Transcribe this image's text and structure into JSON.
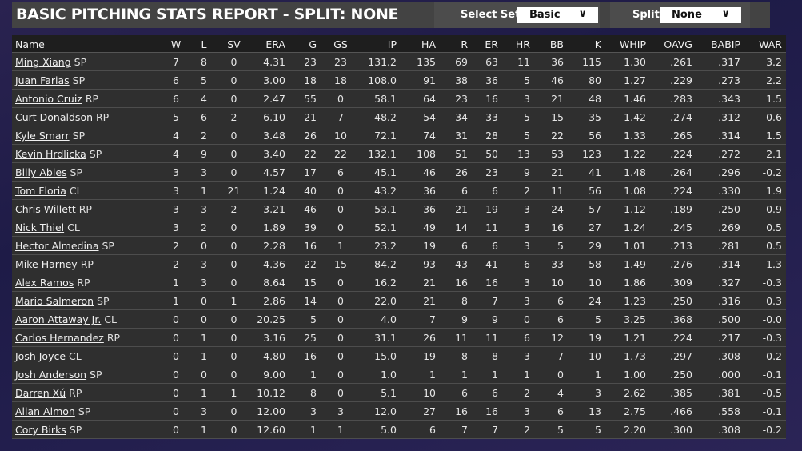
{
  "header": {
    "title": "BASIC PITCHING STATS REPORT - SPLIT: NONE",
    "select_set_label": "Select Set:",
    "select_set_value": "Basic",
    "split_label": "Split:",
    "split_value": "None"
  },
  "columns": [
    "Name",
    "W",
    "L",
    "SV",
    "ERA",
    "G",
    "GS",
    "IP",
    "HA",
    "R",
    "ER",
    "HR",
    "BB",
    "K",
    "WHIP",
    "OAVG",
    "BABIP",
    "WAR"
  ],
  "rows": [
    {
      "name": "Ming Xiang",
      "pos": "SP",
      "stats": [
        "7",
        "8",
        "0",
        "4.31",
        "23",
        "23",
        "131.2",
        "135",
        "69",
        "63",
        "11",
        "36",
        "115",
        "1.30",
        ".261",
        ".317",
        "3.2"
      ]
    },
    {
      "name": "Juan Farias",
      "pos": "SP",
      "stats": [
        "6",
        "5",
        "0",
        "3.00",
        "18",
        "18",
        "108.0",
        "91",
        "38",
        "36",
        "5",
        "46",
        "80",
        "1.27",
        ".229",
        ".273",
        "2.2"
      ]
    },
    {
      "name": "Antonio Cruiz",
      "pos": "RP",
      "stats": [
        "6",
        "4",
        "0",
        "2.47",
        "55",
        "0",
        "58.1",
        "64",
        "23",
        "16",
        "3",
        "21",
        "48",
        "1.46",
        ".283",
        ".343",
        "1.5"
      ]
    },
    {
      "name": "Curt Donaldson",
      "pos": "RP",
      "stats": [
        "5",
        "6",
        "2",
        "6.10",
        "21",
        "7",
        "48.2",
        "54",
        "34",
        "33",
        "5",
        "15",
        "35",
        "1.42",
        ".274",
        ".312",
        "0.6"
      ]
    },
    {
      "name": "Kyle Smarr",
      "pos": "SP",
      "stats": [
        "4",
        "2",
        "0",
        "3.48",
        "26",
        "10",
        "72.1",
        "74",
        "31",
        "28",
        "5",
        "22",
        "56",
        "1.33",
        ".265",
        ".314",
        "1.5"
      ]
    },
    {
      "name": "Kevin Hrdlicka",
      "pos": "SP",
      "stats": [
        "4",
        "9",
        "0",
        "3.40",
        "22",
        "22",
        "132.1",
        "108",
        "51",
        "50",
        "13",
        "53",
        "123",
        "1.22",
        ".224",
        ".272",
        "2.1"
      ]
    },
    {
      "name": "Billy Ables",
      "pos": "SP",
      "stats": [
        "3",
        "3",
        "0",
        "4.57",
        "17",
        "6",
        "45.1",
        "46",
        "26",
        "23",
        "9",
        "21",
        "41",
        "1.48",
        ".264",
        ".296",
        "-0.2"
      ]
    },
    {
      "name": "Tom Floria",
      "pos": "CL",
      "stats": [
        "3",
        "1",
        "21",
        "1.24",
        "40",
        "0",
        "43.2",
        "36",
        "6",
        "6",
        "2",
        "11",
        "56",
        "1.08",
        ".224",
        ".330",
        "1.9"
      ]
    },
    {
      "name": "Chris Willett",
      "pos": "RP",
      "stats": [
        "3",
        "3",
        "2",
        "3.21",
        "46",
        "0",
        "53.1",
        "36",
        "21",
        "19",
        "3",
        "24",
        "57",
        "1.12",
        ".189",
        ".250",
        "0.9"
      ]
    },
    {
      "name": "Nick Thiel",
      "pos": "CL",
      "stats": [
        "3",
        "2",
        "0",
        "1.89",
        "39",
        "0",
        "52.1",
        "49",
        "14",
        "11",
        "3",
        "16",
        "27",
        "1.24",
        ".245",
        ".269",
        "0.5"
      ]
    },
    {
      "name": "Hector Almedina",
      "pos": "SP",
      "stats": [
        "2",
        "0",
        "0",
        "2.28",
        "16",
        "1",
        "23.2",
        "19",
        "6",
        "6",
        "3",
        "5",
        "29",
        "1.01",
        ".213",
        ".281",
        "0.5"
      ]
    },
    {
      "name": "Mike Harney",
      "pos": "RP",
      "stats": [
        "2",
        "3",
        "0",
        "4.36",
        "22",
        "15",
        "84.2",
        "93",
        "43",
        "41",
        "6",
        "33",
        "58",
        "1.49",
        ".276",
        ".314",
        "1.3"
      ]
    },
    {
      "name": "Alex Ramos",
      "pos": "RP",
      "stats": [
        "1",
        "3",
        "0",
        "8.64",
        "15",
        "0",
        "16.2",
        "21",
        "16",
        "16",
        "3",
        "10",
        "10",
        "1.86",
        ".309",
        ".327",
        "-0.3"
      ]
    },
    {
      "name": "Mario Salmeron",
      "pos": "SP",
      "stats": [
        "1",
        "0",
        "1",
        "2.86",
        "14",
        "0",
        "22.0",
        "21",
        "8",
        "7",
        "3",
        "6",
        "24",
        "1.23",
        ".250",
        ".316",
        "0.3"
      ]
    },
    {
      "name": "Aaron Attaway Jr.",
      "pos": "CL",
      "stats": [
        "0",
        "0",
        "0",
        "20.25",
        "5",
        "0",
        "4.0",
        "7",
        "9",
        "9",
        "0",
        "6",
        "5",
        "3.25",
        ".368",
        ".500",
        "-0.0"
      ]
    },
    {
      "name": "Carlos Hernandez",
      "pos": "RP",
      "stats": [
        "0",
        "1",
        "0",
        "3.16",
        "25",
        "0",
        "31.1",
        "26",
        "11",
        "11",
        "6",
        "12",
        "19",
        "1.21",
        ".224",
        ".217",
        "-0.3"
      ]
    },
    {
      "name": "Josh Joyce",
      "pos": "CL",
      "stats": [
        "0",
        "1",
        "0",
        "4.80",
        "16",
        "0",
        "15.0",
        "19",
        "8",
        "8",
        "3",
        "7",
        "10",
        "1.73",
        ".297",
        ".308",
        "-0.2"
      ]
    },
    {
      "name": "Josh Anderson",
      "pos": "SP",
      "stats": [
        "0",
        "0",
        "0",
        "9.00",
        "1",
        "0",
        "1.0",
        "1",
        "1",
        "1",
        "1",
        "0",
        "1",
        "1.00",
        ".250",
        ".000",
        "-0.1"
      ]
    },
    {
      "name": "Darren Xú",
      "pos": "RP",
      "stats": [
        "0",
        "1",
        "1",
        "10.12",
        "8",
        "0",
        "5.1",
        "10",
        "6",
        "6",
        "2",
        "4",
        "3",
        "2.62",
        ".385",
        ".381",
        "-0.5"
      ]
    },
    {
      "name": "Allan Almon",
      "pos": "SP",
      "stats": [
        "0",
        "3",
        "0",
        "12.00",
        "3",
        "3",
        "12.0",
        "27",
        "16",
        "16",
        "3",
        "6",
        "13",
        "2.75",
        ".466",
        ".558",
        "-0.1"
      ]
    },
    {
      "name": "Cory Birks",
      "pos": "SP",
      "stats": [
        "0",
        "1",
        "0",
        "12.60",
        "1",
        "1",
        "5.0",
        "6",
        "7",
        "7",
        "2",
        "5",
        "5",
        "2.20",
        ".300",
        ".308",
        "-0.2"
      ]
    }
  ]
}
